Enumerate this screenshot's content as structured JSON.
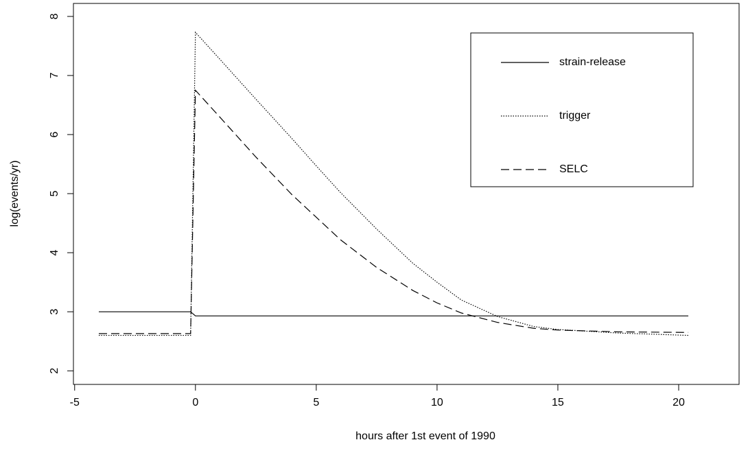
{
  "chart_data": {
    "type": "line",
    "xlabel": "hours after 1st event of 1990",
    "ylabel": "log(events/yr)",
    "xlim": [
      -5.05,
      22.5
    ],
    "xticks": [
      -5,
      0,
      5,
      10,
      15,
      20
    ],
    "ylim": [
      1.77,
      8.22
    ],
    "yticks": [
      2,
      3,
      4,
      5,
      6,
      7,
      8
    ],
    "legend": "top-right",
    "series": [
      {
        "name": "strain-release",
        "color": "#000000",
        "linestyle": "solid",
        "x": [
          -4,
          -0.2,
          0,
          20.4
        ],
        "values": [
          3.0,
          3.0,
          2.93,
          2.93
        ]
      },
      {
        "name": "trigger",
        "color": "#000000",
        "linestyle": "dotted",
        "x": [
          -4,
          -0.2,
          0,
          1,
          2.5,
          4,
          5,
          6,
          7.5,
          9,
          10,
          11,
          12.5,
          14,
          15,
          17.5,
          20.4
        ],
        "values": [
          2.6,
          2.6,
          7.73,
          7.28,
          6.6,
          5.93,
          5.47,
          5.02,
          4.4,
          3.82,
          3.5,
          3.2,
          2.92,
          2.75,
          2.7,
          2.64,
          2.6
        ]
      },
      {
        "name": "SELC",
        "color": "#000000",
        "linestyle": "dashed",
        "x": [
          -4,
          -0.2,
          0,
          1,
          2.5,
          4,
          5,
          6,
          7.5,
          9,
          10,
          11,
          12.5,
          14,
          15,
          17.5,
          20.4
        ],
        "values": [
          2.63,
          2.63,
          6.75,
          6.3,
          5.62,
          4.98,
          4.6,
          4.22,
          3.75,
          3.36,
          3.15,
          2.98,
          2.82,
          2.72,
          2.69,
          2.66,
          2.65
        ]
      }
    ]
  }
}
